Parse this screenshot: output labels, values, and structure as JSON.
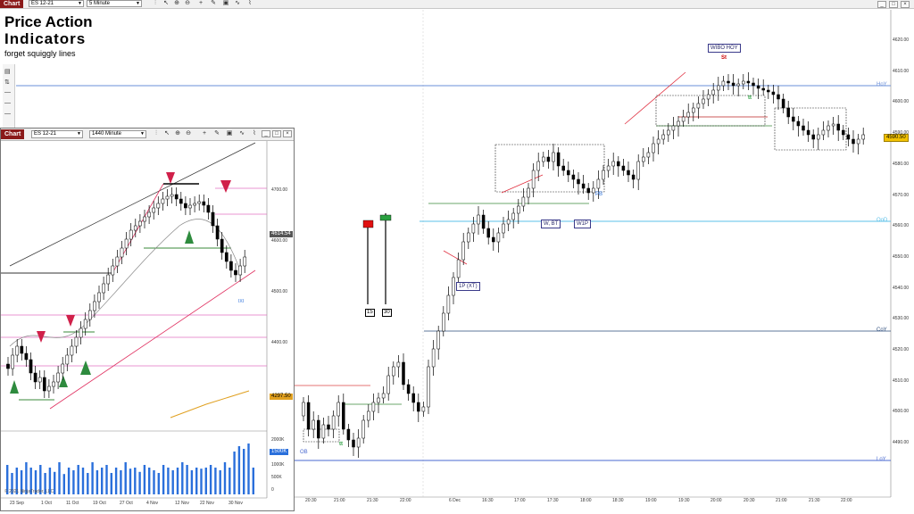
{
  "main_toolbar": {
    "chart_tab": "Chart",
    "instrument": "ES 12-21",
    "interval": "5 Minute"
  },
  "overlay": {
    "title_line1": "Price Action",
    "title_line2": "Indicators",
    "subtitle": "forget squiggly lines"
  },
  "price_axis": [
    "4620.00",
    "4610.00",
    "4600.00",
    "4590.00",
    "4580.00",
    "4570.00",
    "4560.00",
    "4550.00",
    "4540.00",
    "4530.00",
    "4520.00",
    "4510.00",
    "4500.00",
    "4490.00"
  ],
  "last_price": "4590.50",
  "level_labels": {
    "hoy": "HoY",
    "ood": "OoD",
    "coy": "CoY",
    "loy": "LoY",
    "ob": "OB"
  },
  "time_axis": [
    "20:30",
    "21:00",
    "21:30",
    "22:00",
    "6 Dec",
    "16:30",
    "17:00",
    "17:30",
    "18:00",
    "18:30",
    "19:00",
    "19:30",
    "20:00",
    "20:30",
    "21:00",
    "21:30",
    "22:00"
  ],
  "annotations": {
    "wibo_hoy": "WIBO HOY",
    "st": "St",
    "tag_1p_xt": "1P (XT)",
    "tag_w_bt": "W, BT",
    "tag_w1p": "W1P",
    "pb": "PB",
    "bar_15": "15",
    "bar_30": "30",
    "tt": "tt"
  },
  "inset": {
    "chart_tab": "Chart",
    "instrument": "ES 12-21",
    "interval": "1440 Minute",
    "price_axis": [
      "4700.00",
      "4600.00",
      "4500.00",
      "4400.00"
    ],
    "last_price": "4614.54",
    "gold_price": "4297.50",
    "volume_axis": [
      "2000K",
      "1500K",
      "1000K",
      "500K",
      "0"
    ],
    "volume_last": "1500K",
    "time_axis": [
      "23 Sep",
      "1 Oct",
      "11 Oct",
      "19 Oct",
      "27 Oct",
      "4 Nov",
      "12 Nov",
      "22 Nov",
      "30 Nov"
    ],
    "copyright": "© 2021 NinjaTrader, LLC",
    "ix_label": "IXI"
  },
  "colors": {
    "chart_tab": "#8b1a1a",
    "hoy_line": "#6a8fd8",
    "ood_line": "#5bc0e8",
    "coy_line": "#2a4a7a",
    "loy_line": "#4a6ad0",
    "bull_arrow": "#2e8b3e",
    "bear_arrow": "#d0204a",
    "volume": "#2a6fdb"
  }
}
